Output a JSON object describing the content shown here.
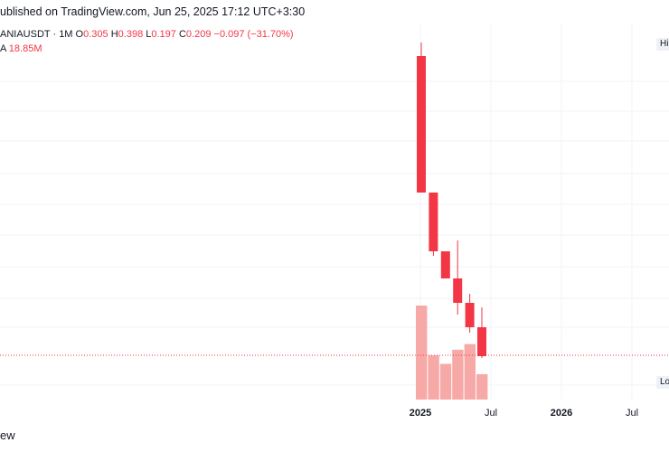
{
  "header": {
    "published_text": "ublished on TradingView.com, Jun 25, 2025 17:12 UTC+3:30"
  },
  "legend": {
    "symbol": "ANIAUSDT · 1M",
    "open_label": "O",
    "open_value": "0.305",
    "high_label": "H",
    "high_value": "0.398",
    "low_label": "L",
    "low_value": "0.197",
    "close_label": "C",
    "close_value": "0.209",
    "change": "−0.097 (−31.70%)",
    "volume_label": "A",
    "volume_value": "18.85M"
  },
  "badges": {
    "high": "Hi",
    "low": "Lo"
  },
  "footer": {
    "text": "ew"
  },
  "colors": {
    "down": "#f23645",
    "volume_down": "#f7a9a7",
    "grid": "#f0f3fa",
    "price_line": "#f23645"
  },
  "chart_data": {
    "type": "candlestick",
    "x_ticks": [
      "2025",
      "Jul",
      "2026",
      "Jul"
    ],
    "candles": [
      {
        "open": 1.0,
        "high": 1.06,
        "low": 0.55,
        "close": 0.57
      },
      {
        "open": 0.57,
        "high": 0.57,
        "low": 0.34,
        "close": 0.36
      },
      {
        "open": 0.36,
        "high": 0.37,
        "low": 0.28,
        "close": 0.3
      },
      {
        "open": 0.3,
        "high": 0.38,
        "low": 0.21,
        "close": 0.24
      },
      {
        "open": 0.24,
        "high": 0.245,
        "low": 0.18,
        "close": 0.185
      },
      {
        "open": 0.305,
        "high": 0.398,
        "low": 0.197,
        "close": 0.209
      }
    ],
    "volumes": [
      1.0,
      0.47,
      0.38,
      0.53,
      0.59,
      0.27
    ]
  }
}
